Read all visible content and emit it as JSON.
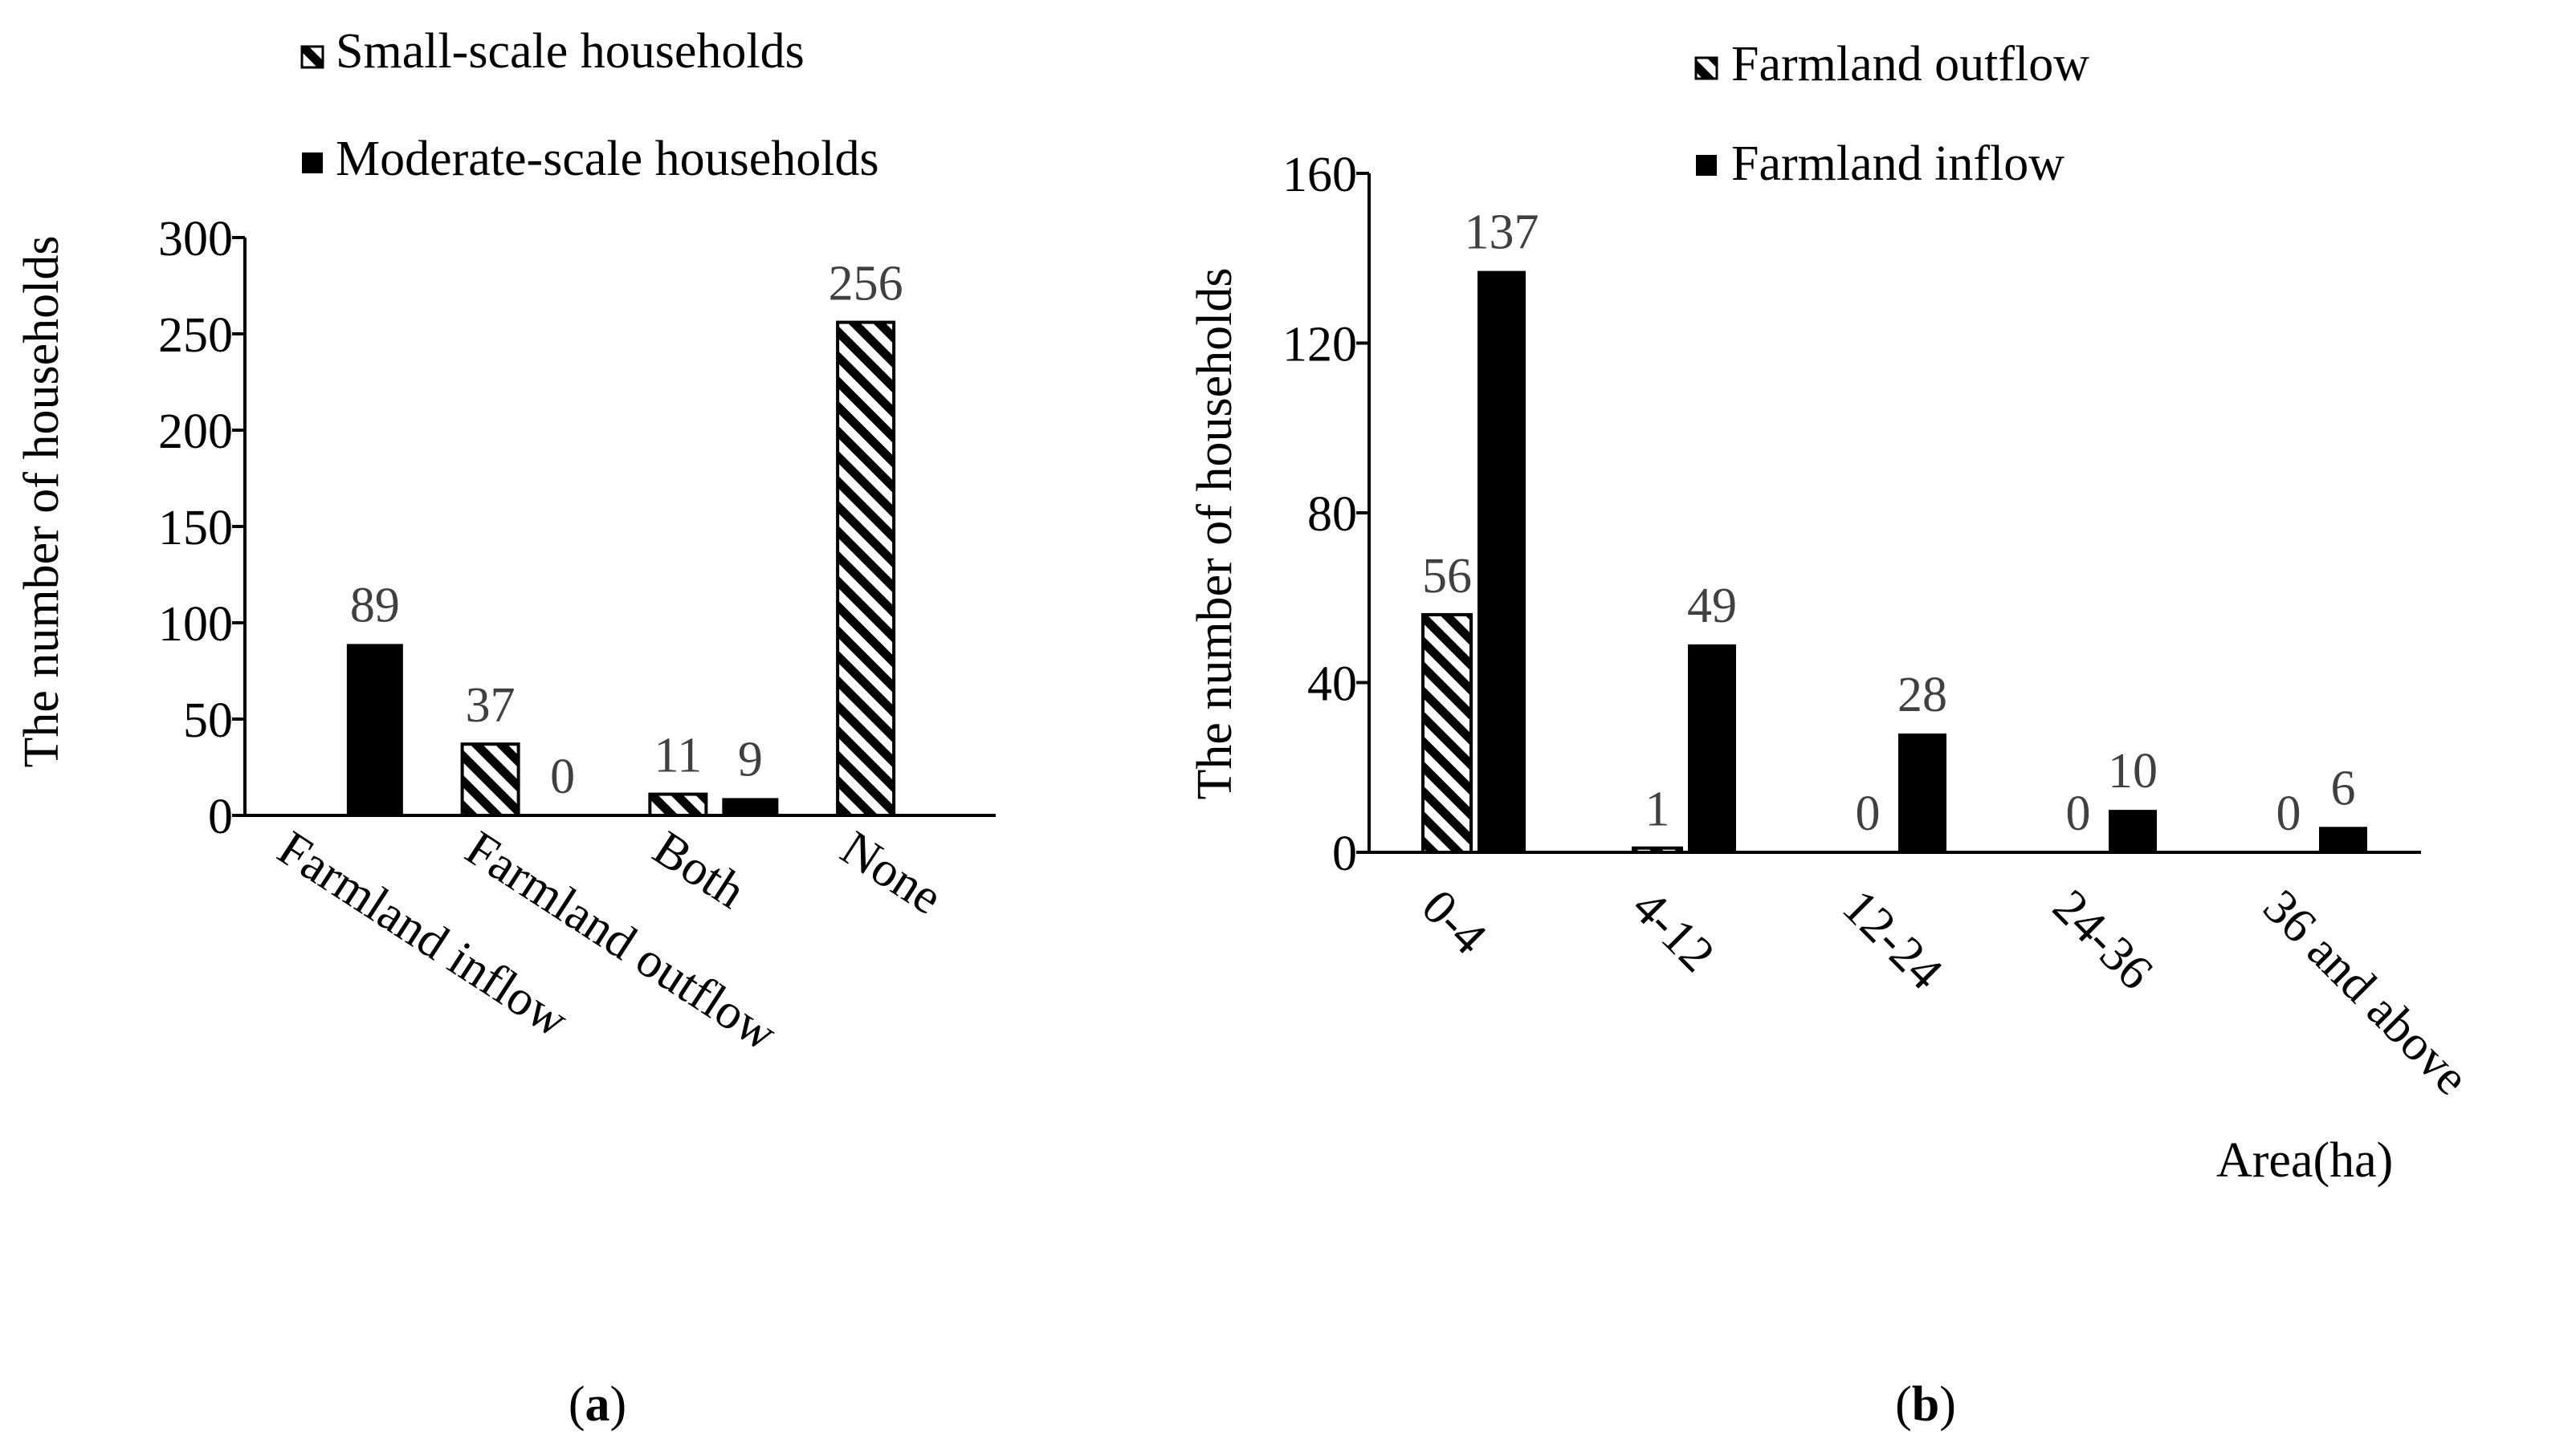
{
  "chart_data": [
    {
      "type": "bar",
      "panel_caption": "a",
      "ylabel": "The number of households",
      "xlabel": "",
      "ylim": [
        0,
        300
      ],
      "yticks": [
        0,
        50,
        100,
        150,
        200,
        250,
        300
      ],
      "categories": [
        "Farmland inflow",
        "Farmland outflow",
        "Both",
        "None"
      ],
      "series": [
        {
          "name": "Small-scale households",
          "pattern": "hatched",
          "values": [
            null,
            37,
            11,
            256
          ],
          "labels": [
            "",
            "37",
            "11",
            "256"
          ]
        },
        {
          "name": "Moderate-scale households",
          "pattern": "solid",
          "values": [
            89,
            0,
            9,
            null
          ],
          "labels": [
            "89",
            "0",
            "9",
            ""
          ]
        }
      ],
      "legend": "top-center"
    },
    {
      "type": "bar",
      "panel_caption": "b",
      "ylabel": "The number of households",
      "xlabel": "Area(ha)",
      "ylim": [
        0,
        160
      ],
      "yticks": [
        0,
        40,
        80,
        120,
        160
      ],
      "categories": [
        "0-4",
        "4-12",
        "12-24",
        "24-36",
        "36 and above"
      ],
      "series": [
        {
          "name": "Farmland outflow",
          "pattern": "hatched",
          "values": [
            56,
            1,
            0,
            0,
            0
          ],
          "labels": [
            "56",
            "1",
            "0",
            "0",
            "0"
          ]
        },
        {
          "name": "Farmland inflow",
          "pattern": "solid",
          "values": [
            137,
            49,
            28,
            10,
            6
          ],
          "labels": [
            "137",
            "49",
            "28",
            "10",
            "6"
          ]
        }
      ],
      "legend": "top-center"
    }
  ],
  "colors": {
    "bar": "#000000",
    "label": "#404040",
    "text": "#000000"
  }
}
